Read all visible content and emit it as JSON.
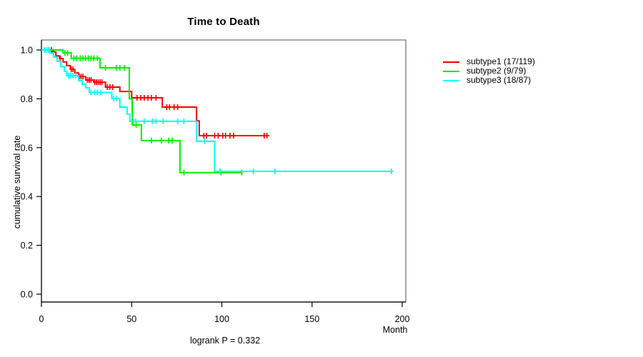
{
  "chart_data": {
    "type": "line",
    "variant": "kaplan-meier-step",
    "title": "Time to Death",
    "xlabel": "Month",
    "ylabel": "cumulative survival rate",
    "footnote": "logrank P = 0.332",
    "xlim": [
      0,
      202
    ],
    "ylim": [
      0,
      1.04
    ],
    "grid": false,
    "legend_position": "outside-right",
    "x_ticks": [
      0,
      50,
      100,
      150,
      200
    ],
    "x_tick_labels": [
      "0",
      "50",
      "100",
      "150",
      "200"
    ],
    "y_ticks": [
      0.0,
      0.2,
      0.4,
      0.6,
      0.8,
      1.0
    ],
    "y_tick_labels": [
      "0.0",
      "0.2",
      "0.4",
      "0.6",
      "0.8",
      "1.0"
    ],
    "series": [
      {
        "name": "subtype1",
        "label": "subtype1 (17/119)",
        "events": 17,
        "n": 119,
        "color": "#ff0000",
        "steps": [
          [
            0,
            1.0
          ],
          [
            6,
            0.992
          ],
          [
            8,
            0.976
          ],
          [
            10,
            0.965
          ],
          [
            12,
            0.951
          ],
          [
            14,
            0.936
          ],
          [
            16,
            0.921
          ],
          [
            18.5,
            0.906
          ],
          [
            20.5,
            0.891
          ],
          [
            24.5,
            0.877
          ],
          [
            29,
            0.868
          ],
          [
            35.5,
            0.848
          ],
          [
            43.5,
            0.83
          ],
          [
            50,
            0.804
          ],
          [
            67,
            0.766
          ],
          [
            86,
            0.71
          ],
          [
            87.5,
            0.649
          ]
        ],
        "end_time": 126.3,
        "censor_times": [
          5.5,
          6.8,
          10.5,
          16.5,
          17.5,
          21,
          22,
          23,
          25.5,
          26.5,
          27.5,
          29.5,
          30.5,
          31.5,
          32.5,
          33.5,
          36.5,
          38,
          39.5,
          53,
          55,
          57,
          59,
          61,
          63.5,
          69.5,
          71,
          73.5,
          75.5,
          90,
          91.5,
          96,
          98,
          100.5,
          102,
          104.5,
          106.5,
          123.5,
          125
        ]
      },
      {
        "name": "subtype2",
        "label": "subtype2 (9/79)",
        "events": 9,
        "n": 79,
        "color": "#00ee00",
        "steps": [
          [
            0,
            1.0
          ],
          [
            12,
            0.988
          ],
          [
            16.5,
            0.966
          ],
          [
            32.5,
            0.927
          ],
          [
            48.7,
            0.8
          ],
          [
            50.3,
            0.693
          ],
          [
            55.4,
            0.629
          ],
          [
            76.8,
            0.498
          ]
        ],
        "end_time": 111.5,
        "censor_times": [
          13,
          14.5,
          18,
          19.5,
          21.5,
          23,
          24.5,
          26,
          27.5,
          29,
          31,
          35.5,
          41.5,
          43.5,
          46,
          52.5,
          61,
          66.5,
          70.5,
          72.5,
          79,
          99.5,
          111
        ]
      },
      {
        "name": "subtype3",
        "label": "subtype3 (18/87)",
        "events": 18,
        "n": 87,
        "color": "#00ffff",
        "steps": [
          [
            0,
            1.0
          ],
          [
            4.5,
            0.988
          ],
          [
            6.7,
            0.971
          ],
          [
            8.7,
            0.954
          ],
          [
            10.7,
            0.932
          ],
          [
            12.7,
            0.912
          ],
          [
            14,
            0.895
          ],
          [
            20.6,
            0.874
          ],
          [
            22.6,
            0.86
          ],
          [
            24.6,
            0.845
          ],
          [
            26.5,
            0.826
          ],
          [
            39,
            0.801
          ],
          [
            43.5,
            0.766
          ],
          [
            47.5,
            0.737
          ],
          [
            49,
            0.708
          ],
          [
            86,
            0.626
          ],
          [
            96,
            0.503
          ]
        ],
        "end_time": 195,
        "censor_times": [
          1.6,
          2.5,
          3.6,
          4.4,
          15,
          16.2,
          17.4,
          19,
          27.5,
          29.5,
          31,
          33,
          40,
          41.5,
          51,
          52.3,
          57,
          61.5,
          63.5,
          67.5,
          75.5,
          79,
          90.5,
          99,
          117.5,
          129.5,
          194
        ]
      }
    ]
  },
  "colors": {
    "background": "#ffffff",
    "box_border": "#6e6e6e",
    "axis": "#000000",
    "text": "#000000"
  }
}
